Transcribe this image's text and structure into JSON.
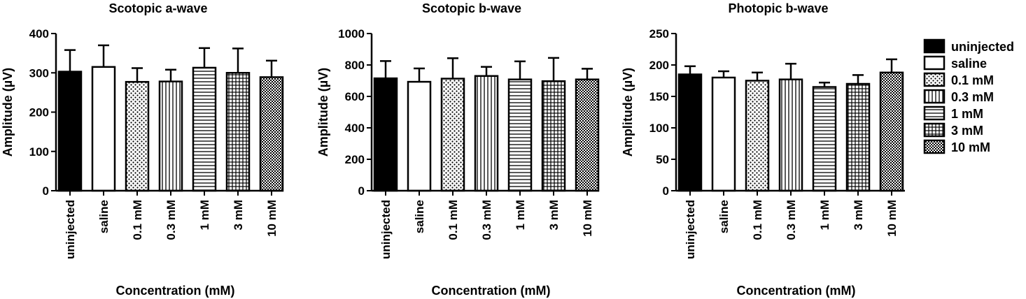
{
  "chart_data": {
    "categories": [
      "uninjected",
      "saline",
      "0.1 mM",
      "0.3 mM",
      "1 mM",
      "3 mM",
      "10 mM"
    ],
    "xlabel": "Concentration (mM)",
    "legend": {
      "position": "right",
      "entries": [
        {
          "label": "uninjected",
          "fill": "solid"
        },
        {
          "label": "saline",
          "fill": "white"
        },
        {
          "label": "0.1 mM",
          "fill": "dots"
        },
        {
          "label": "0.3 mM",
          "fill": "vertical-lines"
        },
        {
          "label": "1 mM",
          "fill": "horizontal-lines"
        },
        {
          "label": "3 mM",
          "fill": "grid"
        },
        {
          "label": "10 mM",
          "fill": "checker"
        }
      ]
    },
    "charts": [
      {
        "type": "bar",
        "title": "Scotopic a-wave",
        "ylabel": "Amplitude (µV)",
        "ylim": [
          0,
          400
        ],
        "yticks": [
          0,
          100,
          200,
          300,
          400
        ],
        "values": [
          303,
          315,
          277,
          278,
          313,
          300,
          289
        ],
        "errors": [
          55,
          55,
          35,
          30,
          50,
          62,
          42
        ]
      },
      {
        "type": "bar",
        "title": "Scotopic b-wave",
        "ylabel": "Amplitude (µV)",
        "ylim": [
          0,
          1000
        ],
        "yticks": [
          0,
          200,
          400,
          600,
          800,
          1000
        ],
        "values": [
          715,
          693,
          713,
          730,
          708,
          697,
          708
        ],
        "errors": [
          110,
          85,
          130,
          58,
          115,
          148,
          68
        ]
      },
      {
        "type": "bar",
        "title": "Photopic b-wave",
        "ylabel": "Amplitude (µV)",
        "ylim": [
          0,
          250
        ],
        "yticks": [
          0,
          50,
          100,
          150,
          200,
          250
        ],
        "values": [
          185,
          180,
          175,
          177,
          165,
          170,
          188
        ],
        "errors": [
          13,
          10,
          13,
          25,
          7,
          14,
          21
        ]
      }
    ]
  }
}
